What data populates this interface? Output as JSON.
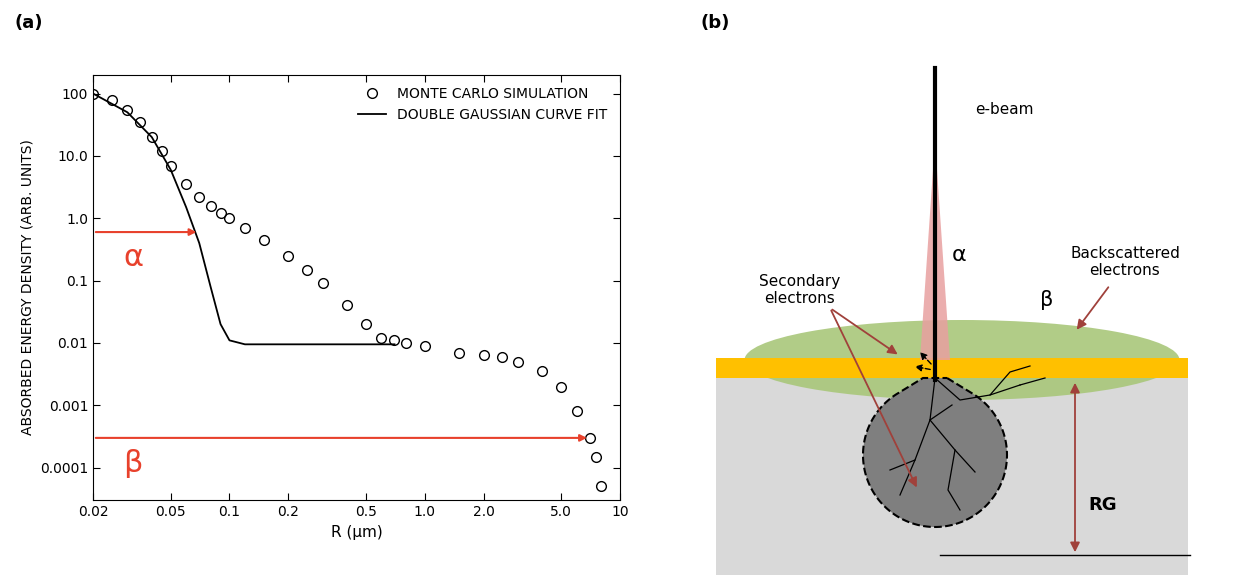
{
  "chart_data": {
    "type": "line",
    "title": "(a)",
    "x_label": "R (µm)",
    "y_label": "ABSORBED ENERGY DENSITY (ARB. UNITS)",
    "log": true,
    "legend": "upper right",
    "grid": false,
    "xlim": [
      0.02,
      10
    ],
    "ylim": [
      3e-05,
      200
    ],
    "xticks": [
      0.02,
      0.05,
      0.1,
      0.2,
      0.5,
      {
        "value": 1,
        "label": "1.0"
      },
      {
        "value": 2,
        "label": "2.0"
      },
      {
        "value": 5,
        "label": "5.0"
      },
      10
    ],
    "yticks": [
      0.0001,
      0.001,
      0.01,
      0.1,
      {
        "value": 1,
        "label": "1.0"
      },
      {
        "value": 10,
        "label": "10.0"
      },
      100
    ],
    "series": [
      {
        "name": "MONTE CARLO SIMULATION",
        "type": "scatter",
        "marker": "o",
        "color": "#000000",
        "x": [
          0.02,
          0.025,
          0.03,
          0.035,
          0.04,
          0.045,
          0.05,
          0.06,
          0.07,
          0.08,
          0.09,
          0.1,
          0.12,
          0.15,
          0.2,
          0.25,
          0.3,
          0.4,
          0.5,
          0.6,
          0.7,
          0.8,
          1.0,
          1.5,
          2.0,
          2.5,
          3.0,
          4.0,
          5.0,
          6.0,
          7.0,
          7.5,
          8.0
        ],
        "values": [
          100,
          80,
          55,
          35,
          20,
          12,
          7,
          3.5,
          2.2,
          1.6,
          1.2,
          1.0,
          0.7,
          0.45,
          0.25,
          0.15,
          0.09,
          0.04,
          0.02,
          0.012,
          0.011,
          0.01,
          0.009,
          0.007,
          0.0065,
          0.006,
          0.005,
          0.0035,
          0.002,
          0.0008,
          0.0003,
          0.00015,
          5e-05
        ]
      },
      {
        "name": "DOUBLE GAUSSIAN CURVE FIT",
        "type": "line",
        "line_style": "solid",
        "color": "#000000",
        "x": [
          0.02,
          0.03,
          0.04,
          0.05,
          0.06,
          0.07,
          0.08,
          0.09,
          0.1,
          0.12,
          0.2,
          0.5,
          0.7
        ],
        "values": [
          100,
          50,
          20,
          6,
          1.5,
          0.4,
          0.08,
          0.02,
          0.011,
          0.0095,
          0.0095,
          0.0095,
          0.0095
        ]
      }
    ],
    "annotations": [
      {
        "text": "α",
        "x": 0.07,
        "y": 0.6,
        "color": "#e8412c"
      },
      {
        "text": "β",
        "x": 7.0,
        "y": 0.0003,
        "color": "#e8412c"
      }
    ]
  },
  "diagram": {
    "title": "(b)",
    "beam_label": "e-beam",
    "alpha_label": "α",
    "beta_label": "β",
    "secondary_electrons": "Secondary\nelectrons",
    "backscattered_electrons": "Backscattered\nelectrons",
    "range_label": "RG"
  }
}
